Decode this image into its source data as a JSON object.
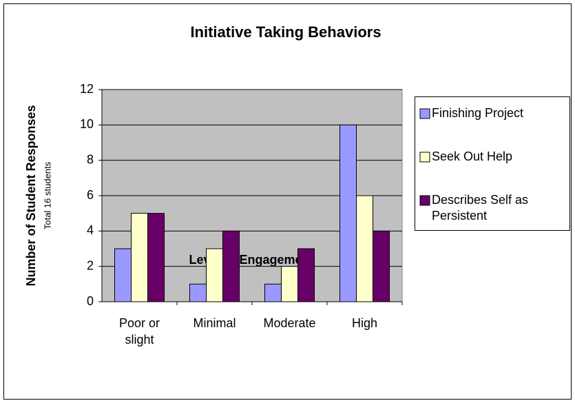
{
  "chart_data": {
    "type": "bar",
    "title": "Initiative Taking Behaviors",
    "x_label": "Level of Engagement",
    "y_label": "Number of Student Responses",
    "y_sublabel": "Total 16 students",
    "categories": [
      "Poor or slight",
      "Minimal",
      "Moderate",
      "High"
    ],
    "series": [
      {
        "name": "Finishing Project",
        "color": "#9999ff",
        "values": [
          3,
          1,
          1,
          10
        ]
      },
      {
        "name": "Seek Out Help",
        "color": "#ffffcc",
        "values": [
          5,
          3,
          2,
          6
        ]
      },
      {
        "name": "Describes Self as Persistent",
        "color": "#660066",
        "values": [
          5,
          4,
          3,
          4
        ]
      }
    ],
    "ylim": [
      0,
      12
    ],
    "yticks": [
      0,
      2,
      4,
      6,
      8,
      10,
      12
    ],
    "grid": true,
    "legend": "right"
  }
}
